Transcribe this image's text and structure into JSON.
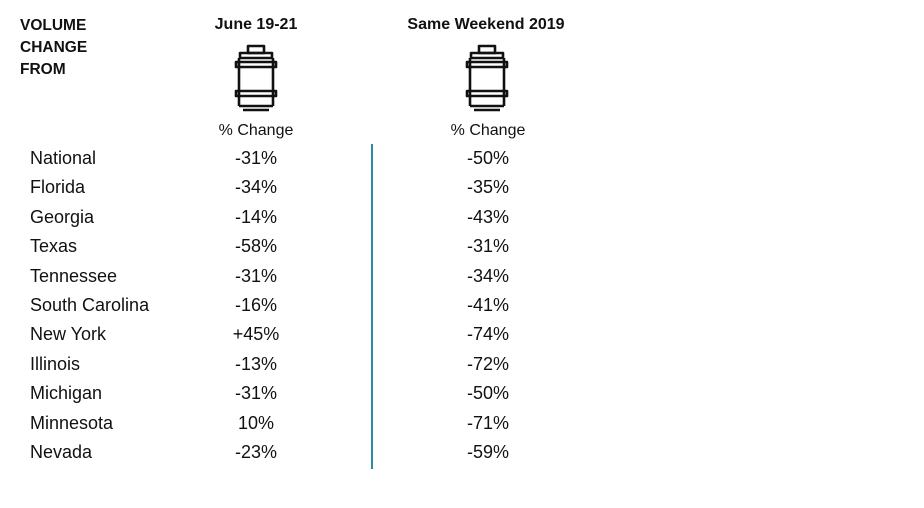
{
  "corner_label": [
    "VOLUME",
    "CHANGE",
    "FROM"
  ],
  "columns": [
    {
      "header": "June 19-21",
      "sub": "% Change",
      "icon": "keg-icon"
    },
    {
      "header": "Same Weekend 2019",
      "sub": "% Change",
      "icon": "keg-icon"
    }
  ],
  "divider_color": "#2a8c9e",
  "chart_data": {
    "type": "table",
    "columns": [
      "June 19-21",
      "Same Weekend 2019"
    ],
    "rows": [
      {
        "state": "National",
        "values": [
          "-31%",
          "-50%"
        ]
      },
      {
        "state": "Florida",
        "values": [
          "-34%",
          "-35%"
        ]
      },
      {
        "state": "Georgia",
        "values": [
          "-14%",
          "-43%"
        ]
      },
      {
        "state": "Texas",
        "values": [
          "-58%",
          "-31%"
        ]
      },
      {
        "state": "Tennessee",
        "values": [
          "-31%",
          "-34%"
        ]
      },
      {
        "state": "South Carolina",
        "values": [
          "-16%",
          "-41%"
        ]
      },
      {
        "state": "New York",
        "values": [
          "+45%",
          "-74%"
        ]
      },
      {
        "state": "Illinois",
        "values": [
          "-13%",
          "-72%"
        ]
      },
      {
        "state": "Michigan",
        "values": [
          "-31%",
          "-50%"
        ]
      },
      {
        "state": "Minnesota",
        "values": [
          "10%",
          "-71%"
        ]
      },
      {
        "state": "Nevada",
        "values": [
          "-23%",
          "-59%"
        ]
      }
    ]
  }
}
